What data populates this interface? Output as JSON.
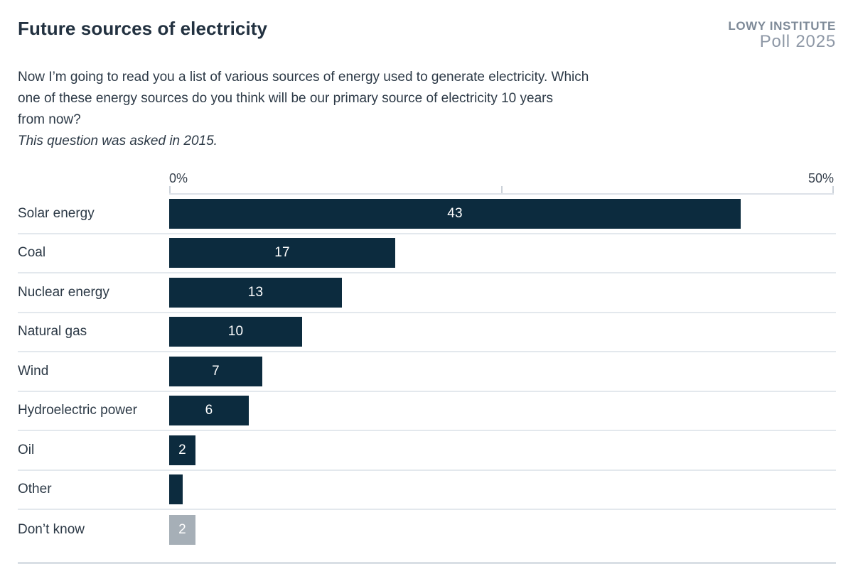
{
  "header": {
    "title": "Future sources of electricity",
    "brand_line1": "LOWY INSTITUTE",
    "brand_line2": "Poll 2025"
  },
  "question": {
    "lines": [
      "Now I’m going to read you a list of various sources of energy used to generate electricity. Which",
      "one of these energy sources do you think will be our primary source of electricity 10 years",
      "from now?"
    ],
    "note": "This question was asked in 2015."
  },
  "chart_data": {
    "type": "bar",
    "orientation": "horizontal",
    "title": "Future sources of electricity",
    "categories": [
      "Solar energy",
      "Coal",
      "Nuclear energy",
      "Natural gas",
      "Wind",
      "Hydroelectric power",
      "Oil",
      "Other",
      "Don’t know"
    ],
    "values": [
      43,
      17,
      13,
      10,
      7,
      6,
      2,
      1,
      2
    ],
    "value_labels": [
      "43",
      "17",
      "13",
      "10",
      "7",
      "6",
      "2",
      "",
      "2"
    ],
    "colors": [
      "#0c2b3e",
      "#0c2b3e",
      "#0c2b3e",
      "#0c2b3e",
      "#0c2b3e",
      "#0c2b3e",
      "#0c2b3e",
      "#0c2b3e",
      "#a6afb7"
    ],
    "axis": {
      "min": 0,
      "max": 50,
      "unit": "%",
      "ticks": [
        0,
        25,
        50
      ],
      "label_left": "0%",
      "label_right": "50%"
    },
    "grid": false,
    "legend": false
  },
  "colors": {
    "bar_navy": "#0c2b3e",
    "bar_gray": "#a6afb7",
    "value_label": "#ffffff",
    "separator": "#e3e8ed",
    "axis_line": "#dde2e8",
    "text_dark": "#2c3946",
    "brand_gray": "#8e98a6"
  }
}
